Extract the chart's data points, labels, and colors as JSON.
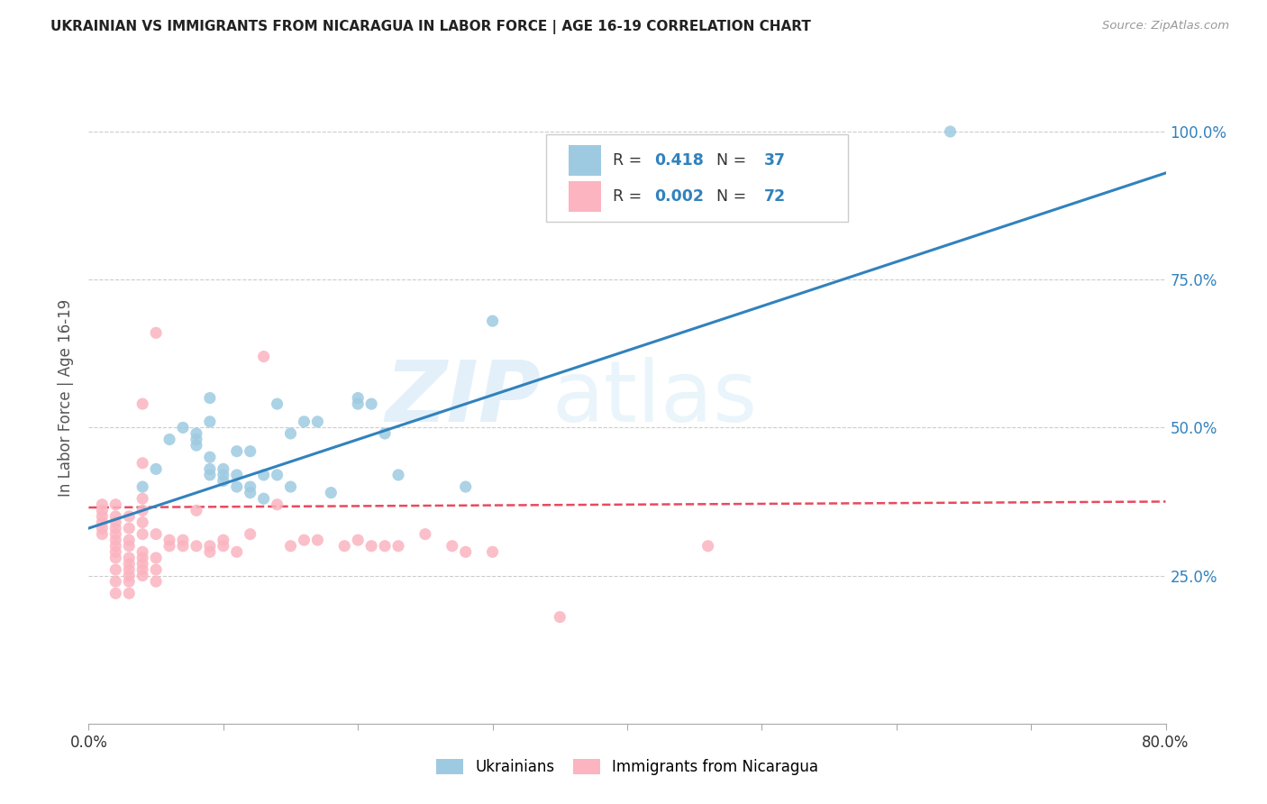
{
  "title": "UKRAINIAN VS IMMIGRANTS FROM NICARAGUA IN LABOR FORCE | AGE 16-19 CORRELATION CHART",
  "source": "Source: ZipAtlas.com",
  "ylabel": "In Labor Force | Age 16-19",
  "xlim": [
    0.0,
    0.8
  ],
  "ylim": [
    0.0,
    1.1
  ],
  "xticks": [
    0.0,
    0.1,
    0.2,
    0.3,
    0.4,
    0.5,
    0.6,
    0.7,
    0.8
  ],
  "xticklabels": [
    "0.0%",
    "",
    "",
    "",
    "",
    "",
    "",
    "",
    "80.0%"
  ],
  "yticks_right": [
    0.0,
    0.25,
    0.5,
    0.75,
    1.0
  ],
  "yticklabels_right": [
    "",
    "25.0%",
    "50.0%",
    "75.0%",
    "100.0%"
  ],
  "blue_color": "#9ecae1",
  "pink_color": "#fbb4c0",
  "blue_line_color": "#3182bd",
  "pink_line_color": "#e84a5f",
  "watermark_zip": "ZIP",
  "watermark_atlas": "atlas",
  "blue_scatter_x": [
    0.04,
    0.05,
    0.06,
    0.07,
    0.08,
    0.08,
    0.08,
    0.09,
    0.09,
    0.09,
    0.09,
    0.09,
    0.1,
    0.1,
    0.1,
    0.11,
    0.11,
    0.11,
    0.12,
    0.12,
    0.12,
    0.13,
    0.13,
    0.14,
    0.14,
    0.15,
    0.15,
    0.16,
    0.17,
    0.18,
    0.2,
    0.2,
    0.21,
    0.22,
    0.23,
    0.28,
    0.3,
    0.64
  ],
  "blue_scatter_y": [
    0.4,
    0.43,
    0.48,
    0.5,
    0.47,
    0.48,
    0.49,
    0.42,
    0.43,
    0.45,
    0.51,
    0.55,
    0.41,
    0.42,
    0.43,
    0.4,
    0.42,
    0.46,
    0.39,
    0.4,
    0.46,
    0.38,
    0.42,
    0.42,
    0.54,
    0.4,
    0.49,
    0.51,
    0.51,
    0.39,
    0.54,
    0.55,
    0.54,
    0.49,
    0.42,
    0.4,
    0.68,
    1.0
  ],
  "pink_scatter_x": [
    0.01,
    0.01,
    0.01,
    0.01,
    0.01,
    0.01,
    0.02,
    0.02,
    0.02,
    0.02,
    0.02,
    0.02,
    0.02,
    0.02,
    0.02,
    0.02,
    0.02,
    0.02,
    0.03,
    0.03,
    0.03,
    0.03,
    0.03,
    0.03,
    0.03,
    0.03,
    0.03,
    0.03,
    0.04,
    0.04,
    0.04,
    0.04,
    0.04,
    0.04,
    0.04,
    0.04,
    0.04,
    0.04,
    0.04,
    0.05,
    0.05,
    0.05,
    0.05,
    0.05,
    0.06,
    0.06,
    0.07,
    0.07,
    0.08,
    0.08,
    0.09,
    0.09,
    0.1,
    0.1,
    0.11,
    0.12,
    0.13,
    0.14,
    0.15,
    0.16,
    0.17,
    0.19,
    0.2,
    0.21,
    0.22,
    0.23,
    0.25,
    0.27,
    0.28,
    0.3,
    0.35,
    0.46
  ],
  "pink_scatter_y": [
    0.32,
    0.33,
    0.34,
    0.35,
    0.36,
    0.37,
    0.22,
    0.24,
    0.26,
    0.28,
    0.29,
    0.3,
    0.31,
    0.32,
    0.33,
    0.34,
    0.35,
    0.37,
    0.22,
    0.24,
    0.25,
    0.26,
    0.27,
    0.28,
    0.3,
    0.31,
    0.33,
    0.35,
    0.25,
    0.26,
    0.27,
    0.28,
    0.29,
    0.32,
    0.34,
    0.36,
    0.38,
    0.44,
    0.54,
    0.24,
    0.26,
    0.28,
    0.32,
    0.66,
    0.3,
    0.31,
    0.3,
    0.31,
    0.3,
    0.36,
    0.29,
    0.3,
    0.3,
    0.31,
    0.29,
    0.32,
    0.62,
    0.37,
    0.3,
    0.31,
    0.31,
    0.3,
    0.31,
    0.3,
    0.3,
    0.3,
    0.32,
    0.3,
    0.29,
    0.29,
    0.18,
    0.3
  ],
  "blue_trendline_x": [
    0.0,
    0.8
  ],
  "blue_trendline_y": [
    0.33,
    0.93
  ],
  "pink_trendline_x": [
    0.0,
    0.8
  ],
  "pink_trendline_y": [
    0.365,
    0.375
  ]
}
